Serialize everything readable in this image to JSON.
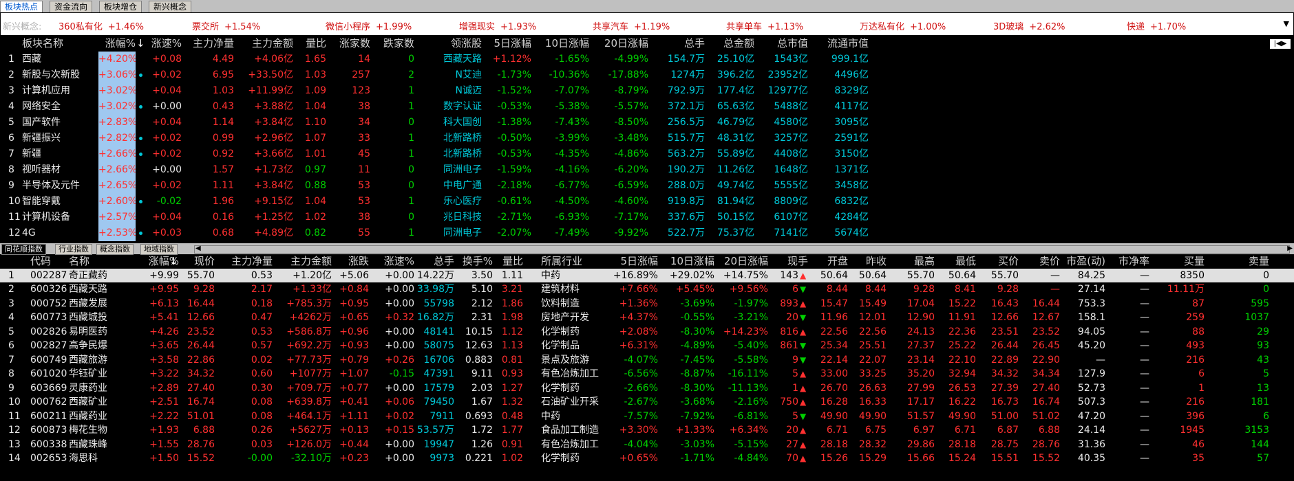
{
  "tabs": [
    "板块热点",
    "资金流向",
    "板块增仓",
    "新兴概念"
  ],
  "concepts": {
    "label": "新兴概念:",
    "items": [
      {
        "name": "360私有化",
        "value": "+1.46%"
      },
      {
        "name": "票交所",
        "value": "+1.54%"
      },
      {
        "name": "微信小程序",
        "value": "+1.99%"
      },
      {
        "name": "增强现实",
        "value": "+1.93%"
      },
      {
        "name": "共享汽车",
        "value": "+1.19%"
      },
      {
        "name": "共享单车",
        "value": "+1.13%"
      },
      {
        "name": "万达私有化",
        "value": "+1.00%"
      },
      {
        "name": "3D玻璃",
        "value": "+2.62%"
      },
      {
        "name": "快递",
        "value": "+1.70%"
      }
    ],
    "arrow": "▼"
  },
  "sector": {
    "headers": [
      "",
      "板块名称",
      "涨幅%",
      "涨速%",
      "主力净量",
      "主力金额",
      "量比",
      "涨家数",
      "跌家数",
      "领涨股",
      "5日涨幅",
      "10日涨幅",
      "20日涨幅",
      "总手",
      "总金额",
      "总市值",
      "流通市值"
    ],
    "rows": [
      [
        "1",
        "西藏",
        "+4.20%",
        "+0.08",
        "4.49",
        "+4.06亿",
        "1.65",
        "14",
        "0",
        "西藏天路",
        "+1.12%",
        "-1.65%",
        "-4.99%",
        "154.7万",
        "25.10亿",
        "1543亿",
        "999.1亿"
      ],
      [
        "2",
        "新股与次新股",
        "+3.06%",
        "+0.02",
        "6.95",
        "+33.50亿",
        "1.03",
        "257",
        "2",
        "N艾迪",
        "-1.73%",
        "-10.36%",
        "-17.88%",
        "1274万",
        "396.2亿",
        "23952亿",
        "4496亿"
      ],
      [
        "3",
        "计算机应用",
        "+3.02%",
        "+0.04",
        "1.03",
        "+11.99亿",
        "1.09",
        "123",
        "1",
        "N诚迈",
        "-1.52%",
        "-7.07%",
        "-8.79%",
        "792.9万",
        "177.4亿",
        "12977亿",
        "8329亿"
      ],
      [
        "4",
        "网络安全",
        "+3.02%",
        "+0.00",
        "0.43",
        "+3.88亿",
        "1.04",
        "38",
        "1",
        "数字认证",
        "-0.53%",
        "-5.38%",
        "-5.57%",
        "372.1万",
        "65.63亿",
        "5488亿",
        "4117亿"
      ],
      [
        "5",
        "国产软件",
        "+2.83%",
        "+0.04",
        "1.14",
        "+3.84亿",
        "1.10",
        "34",
        "0",
        "科大国创",
        "-1.38%",
        "-7.43%",
        "-8.50%",
        "256.5万",
        "46.79亿",
        "4580亿",
        "3095亿"
      ],
      [
        "6",
        "新疆振兴",
        "+2.82%",
        "+0.02",
        "0.99",
        "+2.96亿",
        "1.07",
        "33",
        "1",
        "北新路桥",
        "-0.50%",
        "-3.99%",
        "-3.48%",
        "515.7万",
        "48.31亿",
        "3257亿",
        "2591亿"
      ],
      [
        "7",
        "新疆",
        "+2.66%",
        "+0.02",
        "0.92",
        "+3.66亿",
        "1.01",
        "45",
        "1",
        "北新路桥",
        "-0.53%",
        "-4.35%",
        "-4.86%",
        "563.2万",
        "55.89亿",
        "4408亿",
        "3150亿"
      ],
      [
        "8",
        "视听器材",
        "+2.66%",
        "+0.00",
        "1.57",
        "+1.73亿",
        "0.97",
        "11",
        "0",
        "同洲电子",
        "-1.59%",
        "-4.16%",
        "-6.20%",
        "190.2万",
        "11.26亿",
        "1648亿",
        "1371亿"
      ],
      [
        "9",
        "半导体及元件",
        "+2.65%",
        "+0.02",
        "1.11",
        "+3.84亿",
        "0.88",
        "53",
        "0",
        "中电广通",
        "-2.18%",
        "-6.77%",
        "-6.59%",
        "288.0万",
        "49.74亿",
        "5555亿",
        "3458亿"
      ],
      [
        "10",
        "智能穿戴",
        "+2.60%",
        "-0.02",
        "1.96",
        "+9.15亿",
        "1.04",
        "53",
        "1",
        "乐心医疗",
        "-0.61%",
        "-4.50%",
        "-4.60%",
        "919.8万",
        "81.94亿",
        "8809亿",
        "6832亿"
      ],
      [
        "11",
        "计算机设备",
        "+2.57%",
        "+0.04",
        "0.16",
        "+1.25亿",
        "1.02",
        "38",
        "0",
        "兆日科技",
        "-2.71%",
        "-6.93%",
        "-7.17%",
        "337.6万",
        "50.15亿",
        "6107亿",
        "4284亿"
      ],
      [
        "12",
        "4G",
        "+2.53%",
        "+0.03",
        "0.68",
        "+4.89亿",
        "0.82",
        "55",
        "1",
        "同洲电子",
        "-2.07%",
        "-7.49%",
        "-9.92%",
        "522.7万",
        "75.37亿",
        "7141亿",
        "5674亿"
      ]
    ],
    "dots": [
      1,
      3,
      5,
      6,
      9,
      11
    ]
  },
  "section_tabs": [
    "同花顺指数",
    "行业指数",
    "概念指数",
    "地域指数"
  ],
  "stock": {
    "headers": [
      "",
      "代码",
      "名称",
      "涨幅%",
      "现价",
      "主力净量",
      "主力金额",
      "涨跌",
      "涨速%",
      "总手",
      "换手%",
      "量比",
      "所属行业",
      "5日涨幅",
      "10日涨幅",
      "20日涨幅",
      "现手",
      "开盘",
      "昨收",
      "最高",
      "最低",
      "买价",
      "卖价",
      "市盈(动)",
      "市净率",
      "买量",
      "卖量"
    ],
    "rows": [
      [
        "1",
        "002287",
        "奇正藏药",
        "+9.99",
        "55.70",
        "0.53",
        "+1.20亿",
        "+5.06",
        "+0.00",
        "14.22万",
        "3.50",
        "1.11",
        "中药",
        "+16.89%",
        "+29.02%",
        "+14.75%",
        "143",
        "50.64",
        "50.64",
        "55.70",
        "50.64",
        "55.70",
        "—",
        "84.25",
        "—",
        "8350",
        "0"
      ],
      [
        "2",
        "600326",
        "西藏天路",
        "+9.95",
        "9.28",
        "2.17",
        "+1.33亿",
        "+0.84",
        "+0.00",
        "33.98万",
        "5.10",
        "3.21",
        "建筑材料",
        "+7.66%",
        "+5.45%",
        "+9.56%",
        "6",
        "8.44",
        "8.44",
        "9.28",
        "8.41",
        "9.28",
        "—",
        "27.14",
        "—",
        "11.11万",
        "0"
      ],
      [
        "3",
        "000752",
        "西藏发展",
        "+6.13",
        "16.44",
        "0.18",
        "+785.3万",
        "+0.95",
        "+0.00",
        "55798",
        "2.12",
        "1.86",
        "饮料制造",
        "+1.36%",
        "-3.69%",
        "-1.97%",
        "893",
        "15.47",
        "15.49",
        "17.04",
        "15.22",
        "16.43",
        "16.44",
        "753.3",
        "—",
        "87",
        "595"
      ],
      [
        "4",
        "600773",
        "西藏城投",
        "+5.41",
        "12.66",
        "0.47",
        "+4262万",
        "+0.65",
        "+0.32",
        "16.82万",
        "2.31",
        "1.98",
        "房地产开发",
        "+4.37%",
        "-0.55%",
        "-3.21%",
        "20",
        "11.96",
        "12.01",
        "12.90",
        "11.91",
        "12.66",
        "12.67",
        "158.1",
        "—",
        "259",
        "1037"
      ],
      [
        "5",
        "002826",
        "易明医药",
        "+4.26",
        "23.52",
        "0.53",
        "+586.8万",
        "+0.96",
        "+0.00",
        "48141",
        "10.15",
        "1.12",
        "化学制药",
        "+2.08%",
        "-8.30%",
        "+14.23%",
        "816",
        "22.56",
        "22.56",
        "24.13",
        "22.36",
        "23.51",
        "23.52",
        "94.05",
        "—",
        "88",
        "29"
      ],
      [
        "6",
        "002827",
        "高争民爆",
        "+3.65",
        "26.44",
        "0.57",
        "+692.2万",
        "+0.93",
        "+0.00",
        "58075",
        "12.63",
        "1.13",
        "化学制品",
        "+6.31%",
        "-4.89%",
        "-5.40%",
        "861",
        "25.34",
        "25.51",
        "27.37",
        "25.22",
        "26.44",
        "26.45",
        "45.20",
        "—",
        "493",
        "93"
      ],
      [
        "7",
        "600749",
        "西藏旅游",
        "+3.58",
        "22.86",
        "0.02",
        "+77.73万",
        "+0.79",
        "+0.26",
        "16706",
        "0.883",
        "0.81",
        "景点及旅游",
        "-4.07%",
        "-7.45%",
        "-5.58%",
        "9",
        "22.14",
        "22.07",
        "23.14",
        "22.10",
        "22.89",
        "22.90",
        "—",
        "—",
        "216",
        "43"
      ],
      [
        "8",
        "601020",
        "华钰矿业",
        "+3.22",
        "34.32",
        "0.60",
        "+1077万",
        "+1.07",
        "-0.15",
        "47391",
        "9.11",
        "0.93",
        "有色冶炼加工",
        "-6.56%",
        "-8.87%",
        "-16.11%",
        "5",
        "33.00",
        "33.25",
        "35.20",
        "32.94",
        "34.32",
        "34.34",
        "127.9",
        "—",
        "6",
        "5"
      ],
      [
        "9",
        "603669",
        "灵康药业",
        "+2.89",
        "27.40",
        "0.30",
        "+709.7万",
        "+0.77",
        "+0.00",
        "17579",
        "2.03",
        "1.27",
        "化学制药",
        "-2.66%",
        "-8.30%",
        "-11.13%",
        "1",
        "26.70",
        "26.63",
        "27.99",
        "26.53",
        "27.39",
        "27.40",
        "52.73",
        "—",
        "1",
        "13"
      ],
      [
        "10",
        "000762",
        "西藏矿业",
        "+2.51",
        "16.74",
        "0.08",
        "+639.8万",
        "+0.41",
        "+0.06",
        "79450",
        "1.67",
        "1.32",
        "石油矿业开采",
        "-2.67%",
        "-3.68%",
        "-2.16%",
        "750",
        "16.28",
        "16.33",
        "17.17",
        "16.22",
        "16.73",
        "16.74",
        "507.3",
        "—",
        "216",
        "181"
      ],
      [
        "11",
        "600211",
        "西藏药业",
        "+2.22",
        "51.01",
        "0.08",
        "+464.1万",
        "+1.11",
        "+0.02",
        "7911",
        "0.693",
        "0.48",
        "中药",
        "-7.57%",
        "-7.92%",
        "-6.81%",
        "5",
        "49.90",
        "49.90",
        "51.57",
        "49.90",
        "51.00",
        "51.02",
        "47.20",
        "—",
        "396",
        "6"
      ],
      [
        "12",
        "600873",
        "梅花生物",
        "+1.93",
        "6.88",
        "0.26",
        "+5627万",
        "+0.13",
        "+0.15",
        "53.57万",
        "1.72",
        "1.77",
        "食品加工制造",
        "+3.30%",
        "+1.33%",
        "+6.34%",
        "20",
        "6.71",
        "6.75",
        "6.97",
        "6.71",
        "6.87",
        "6.88",
        "24.14",
        "—",
        "1945",
        "3153"
      ],
      [
        "13",
        "600338",
        "西藏珠峰",
        "+1.55",
        "28.76",
        "0.03",
        "+126.0万",
        "+0.44",
        "+0.00",
        "19947",
        "1.26",
        "0.91",
        "有色冶炼加工",
        "-4.04%",
        "-3.03%",
        "-5.15%",
        "27",
        "28.18",
        "28.32",
        "29.86",
        "28.18",
        "28.75",
        "28.76",
        "31.36",
        "—",
        "46",
        "144"
      ],
      [
        "14",
        "002653",
        "海思科",
        "+1.50",
        "15.52",
        "-0.00",
        "-32.10万",
        "+0.23",
        "+0.00",
        "9973",
        "0.221",
        "1.02",
        "化学制药",
        "+0.65%",
        "-1.71%",
        "-4.84%",
        "70",
        "15.26",
        "15.29",
        "15.66",
        "15.24",
        "15.51",
        "15.52",
        "40.35",
        "—",
        "35",
        "57"
      ]
    ],
    "hand_dir": [
      "up",
      "dn",
      "up",
      "dn",
      "up",
      "dn",
      "dn",
      "up",
      "up",
      "up",
      "dn",
      "up",
      "up",
      "up"
    ]
  },
  "colors": {
    "red": "#ff3030",
    "green": "#00d000",
    "cyan": "#00c8d8",
    "highlight": "#9fc8f0"
  }
}
